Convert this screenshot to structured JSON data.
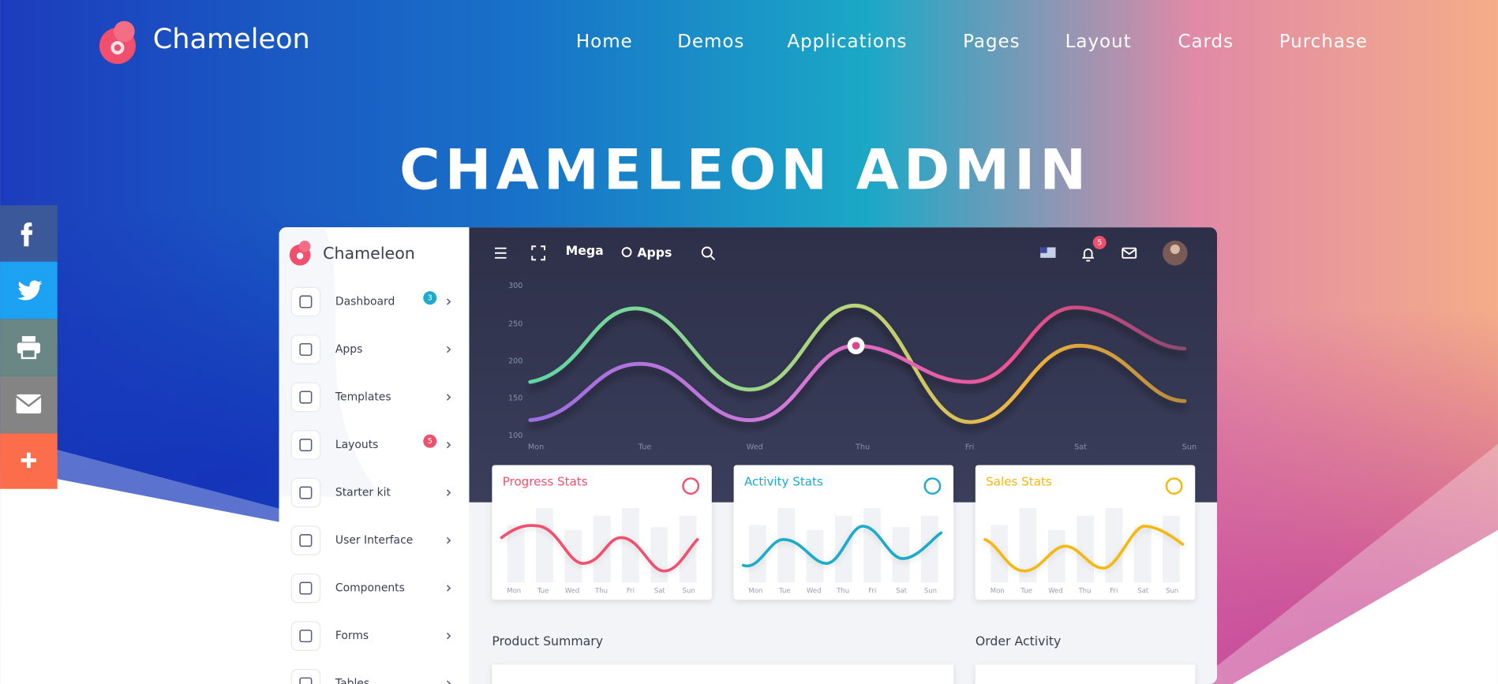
{
  "header": {
    "brand": "Chameleon",
    "nav": [
      "Home",
      "Demos",
      "Applications",
      "Pages",
      "Layout",
      "Cards",
      "Purchase"
    ]
  },
  "hero": {
    "title": "CHAMELEON ADMIN"
  },
  "dashboard": {
    "brand": "Chameleon",
    "topbar": [
      "Mega",
      "Apps"
    ],
    "notifications": 5,
    "sidebar": [
      {
        "label": "Dashboard",
        "badge": 3
      },
      {
        "label": "Apps"
      },
      {
        "label": "Templates"
      },
      {
        "label": "Layouts",
        "badge": 5
      },
      {
        "label": "Starter kit"
      },
      {
        "label": "User Interface"
      },
      {
        "label": "Components"
      },
      {
        "label": "Forms"
      },
      {
        "label": "Tables"
      }
    ],
    "chart": {
      "yaxis": [
        300,
        250,
        200,
        150,
        100
      ],
      "days": [
        "Mon",
        "Tue",
        "Wed",
        "Thu",
        "Fri",
        "Sat",
        "Sun"
      ]
    },
    "cards": [
      {
        "title": "Progress Stats"
      },
      {
        "title": "Activity Stats"
      },
      {
        "title": "Sales Stats"
      }
    ],
    "sections": [
      "Product Summary",
      "Order Activity"
    ]
  }
}
